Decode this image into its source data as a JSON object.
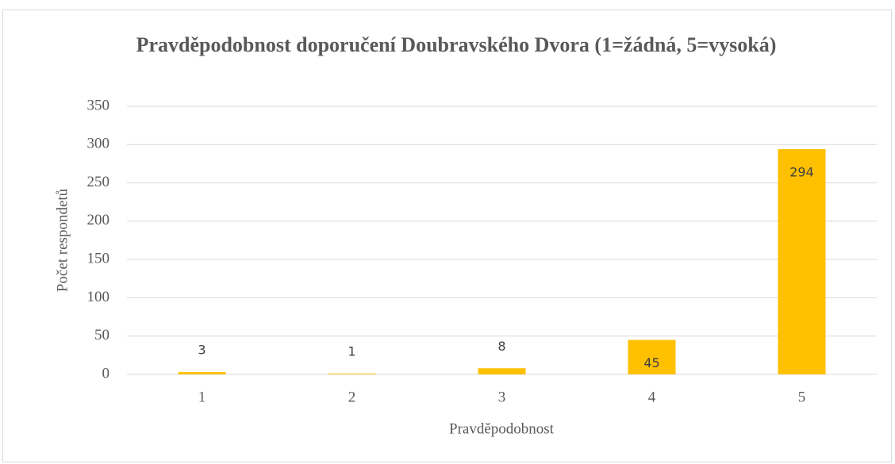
{
  "chart_data": {
    "type": "bar",
    "title": "Pravděpodobnost doporučení Doubravského Dvora (1=žádná, 5=vysoká)",
    "x_label": "Pravděpodobnost",
    "y_label": "Počet respondetů",
    "categories": [
      "1",
      "2",
      "3",
      "4",
      "5"
    ],
    "values": [
      3,
      1,
      8,
      45,
      294
    ],
    "color": "#ffc000",
    "ylim": [
      0,
      350
    ],
    "yticks": [
      0,
      50,
      100,
      150,
      200,
      250,
      300,
      350
    ],
    "grid": true
  }
}
